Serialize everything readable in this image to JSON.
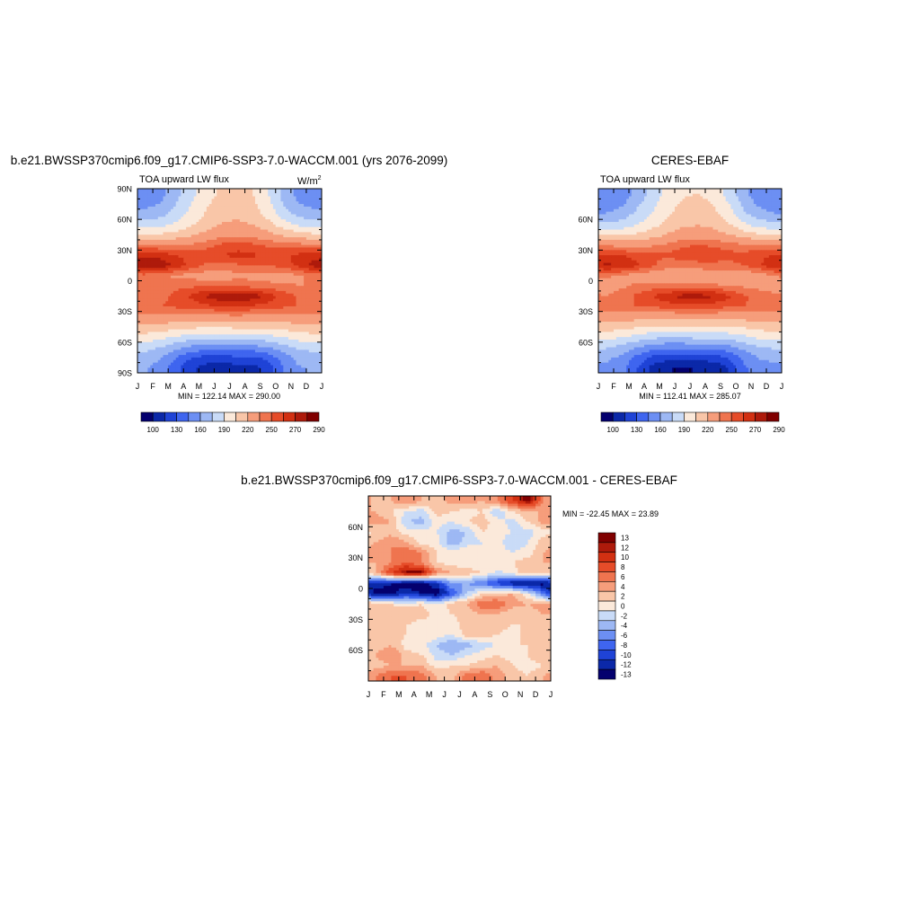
{
  "chart_data": [
    {
      "type": "heatmap",
      "title": "b.e21.BWSSP370cmip6.f09_g17.CMIP6-SSP3-7.0-WACCM.001 (yrs 2076-2099)",
      "subtitle": "TOA upward LW flux",
      "units": "W/m",
      "units_exp": "2",
      "stats": "MIN = 122.14 MAX = 290.00",
      "x_ticks": [
        "J",
        "F",
        "M",
        "A",
        "M",
        "J",
        "J",
        "A",
        "S",
        "O",
        "N",
        "D",
        "J"
      ],
      "y_ticks": [
        "90N",
        "60N",
        "30N",
        "0",
        "30S",
        "60S",
        "90S"
      ],
      "y_values": [
        90,
        60,
        30,
        0,
        -30,
        -60,
        -90
      ],
      "xlim": [
        0,
        12
      ],
      "ylim": [
        -90,
        90
      ],
      "colorbar": {
        "orientation": "horizontal",
        "labels": [
          "100",
          "130",
          "160",
          "190",
          "220",
          "250",
          "270",
          "290"
        ],
        "colors": [
          "#04006e",
          "#0b28a8",
          "#1f43d6",
          "#3f65ef",
          "#6c8ff3",
          "#9db8f4",
          "#c9dbf7",
          "#fbe9da",
          "#f9c6a8",
          "#f69d7b",
          "#ef744f",
          "#e64c29",
          "#d23012",
          "#ae1a0b",
          "#800000"
        ]
      },
      "field": {
        "month_index": [
          0.5,
          1.5,
          2.5,
          3.5,
          4.5,
          5.5,
          6.5,
          7.5,
          8.5,
          9.5,
          10.5,
          11.5
        ],
        "lat": [
          85,
          75,
          65,
          55,
          45,
          35,
          25,
          15,
          5,
          -5,
          -15,
          -25,
          -35,
          -45,
          -55,
          -65,
          -75,
          -85
        ],
        "values": [
          [
            165,
            170,
            185,
            200,
            215,
            222,
            225,
            220,
            205,
            185,
            170,
            165
          ],
          [
            170,
            175,
            190,
            205,
            218,
            226,
            228,
            224,
            210,
            190,
            175,
            170
          ],
          [
            180,
            185,
            197,
            210,
            222,
            230,
            232,
            228,
            215,
            198,
            185,
            180
          ],
          [
            198,
            200,
            208,
            218,
            228,
            236,
            238,
            235,
            225,
            212,
            202,
            198
          ],
          [
            222,
            222,
            226,
            232,
            240,
            246,
            248,
            246,
            240,
            232,
            226,
            222
          ],
          [
            252,
            250,
            250,
            252,
            256,
            262,
            264,
            262,
            258,
            256,
            254,
            252
          ],
          [
            278,
            276,
            270,
            266,
            266,
            270,
            274,
            272,
            268,
            268,
            272,
            276
          ],
          [
            290,
            288,
            278,
            266,
            258,
            256,
            258,
            260,
            260,
            264,
            274,
            284
          ],
          [
            256,
            252,
            248,
            246,
            244,
            244,
            246,
            246,
            244,
            244,
            248,
            254
          ],
          [
            250,
            252,
            256,
            258,
            258,
            258,
            258,
            256,
            254,
            252,
            250,
            250
          ],
          [
            252,
            256,
            264,
            272,
            282,
            288,
            290,
            286,
            276,
            266,
            258,
            254
          ],
          [
            258,
            260,
            262,
            265,
            268,
            270,
            270,
            268,
            266,
            262,
            260,
            258
          ],
          [
            248,
            248,
            246,
            244,
            244,
            246,
            248,
            246,
            246,
            246,
            248,
            248
          ],
          [
            232,
            230,
            226,
            224,
            222,
            222,
            224,
            224,
            224,
            226,
            230,
            232
          ],
          [
            214,
            210,
            204,
            198,
            196,
            196,
            198,
            198,
            200,
            206,
            212,
            214
          ],
          [
            196,
            190,
            180,
            172,
            168,
            168,
            170,
            170,
            174,
            184,
            194,
            196
          ],
          [
            182,
            176,
            160,
            146,
            140,
            140,
            142,
            142,
            150,
            168,
            180,
            182
          ],
          [
            176,
            170,
            150,
            132,
            124,
            122,
            124,
            125,
            136,
            160,
            174,
            176
          ]
        ]
      }
    },
    {
      "type": "heatmap",
      "title": "CERES-EBAF",
      "subtitle": "TOA upward LW flux",
      "stats": "MIN = 112.41 MAX = 285.07",
      "x_ticks": [
        "J",
        "F",
        "M",
        "A",
        "M",
        "J",
        "J",
        "A",
        "S",
        "O",
        "N",
        "D",
        "J"
      ],
      "y_ticks": [
        "60N",
        "30N",
        "0",
        "30S",
        "60S"
      ],
      "y_values": [
        60,
        30,
        0,
        -30,
        -60
      ],
      "xlim": [
        0,
        12
      ],
      "ylim": [
        -90,
        90
      ],
      "colorbar": {
        "orientation": "horizontal",
        "labels": [
          "100",
          "130",
          "160",
          "190",
          "220",
          "250",
          "270",
          "290"
        ],
        "colors": [
          "#04006e",
          "#0b28a8",
          "#1f43d6",
          "#3f65ef",
          "#6c8ff3",
          "#9db8f4",
          "#c9dbf7",
          "#fbe9da",
          "#f9c6a8",
          "#f69d7b",
          "#ef744f",
          "#e64c29",
          "#d23012",
          "#ae1a0b",
          "#800000"
        ]
      },
      "field": {
        "month_index": [
          0.5,
          1.5,
          2.5,
          3.5,
          4.5,
          5.5,
          6.5,
          7.5,
          8.5,
          9.5,
          10.5,
          11.5
        ],
        "lat": [
          85,
          75,
          65,
          55,
          45,
          35,
          25,
          15,
          5,
          -5,
          -15,
          -25,
          -35,
          -45,
          -55,
          -65,
          -75,
          -85
        ],
        "values": [
          [
            160,
            166,
            180,
            196,
            210,
            218,
            220,
            216,
            200,
            180,
            166,
            160
          ],
          [
            166,
            172,
            186,
            200,
            214,
            222,
            224,
            220,
            206,
            186,
            172,
            166
          ],
          [
            176,
            182,
            194,
            206,
            218,
            226,
            228,
            224,
            212,
            194,
            182,
            176
          ],
          [
            194,
            196,
            204,
            214,
            224,
            232,
            234,
            231,
            222,
            208,
            198,
            194
          ],
          [
            218,
            218,
            222,
            228,
            236,
            242,
            244,
            242,
            236,
            228,
            222,
            218
          ],
          [
            248,
            246,
            246,
            248,
            252,
            258,
            260,
            258,
            254,
            252,
            250,
            248
          ],
          [
            272,
            270,
            266,
            262,
            262,
            266,
            270,
            268,
            264,
            264,
            268,
            270
          ],
          [
            282,
            280,
            272,
            262,
            254,
            252,
            254,
            256,
            256,
            260,
            268,
            278
          ],
          [
            252,
            248,
            244,
            242,
            240,
            240,
            242,
            242,
            240,
            240,
            244,
            250
          ],
          [
            246,
            248,
            252,
            254,
            254,
            254,
            254,
            252,
            250,
            248,
            246,
            246
          ],
          [
            250,
            254,
            262,
            270,
            278,
            284,
            285,
            282,
            272,
            262,
            256,
            252
          ],
          [
            256,
            258,
            260,
            262,
            264,
            266,
            266,
            264,
            262,
            260,
            258,
            256
          ],
          [
            244,
            244,
            242,
            240,
            240,
            242,
            244,
            242,
            242,
            242,
            244,
            244
          ],
          [
            228,
            226,
            222,
            220,
            218,
            218,
            220,
            220,
            220,
            222,
            226,
            228
          ],
          [
            210,
            206,
            200,
            194,
            192,
            192,
            194,
            194,
            196,
            202,
            208,
            210
          ],
          [
            192,
            186,
            176,
            168,
            164,
            164,
            166,
            166,
            170,
            180,
            190,
            192
          ],
          [
            178,
            172,
            156,
            142,
            136,
            134,
            136,
            138,
            146,
            164,
            176,
            178
          ],
          [
            172,
            166,
            146,
            126,
            116,
            113,
            116,
            118,
            130,
            156,
            170,
            172
          ]
        ]
      }
    },
    {
      "type": "heatmap",
      "title": "b.e21.BWSSP370cmip6.f09_g17.CMIP6-SSP3-7.0-WACCM.001 - CERES-EBAF",
      "stats": "MIN = -22.45 MAX =  23.89",
      "x_ticks": [
        "J",
        "F",
        "M",
        "A",
        "M",
        "J",
        "J",
        "A",
        "S",
        "O",
        "N",
        "D",
        "J"
      ],
      "y_ticks": [
        "60N",
        "30N",
        "0",
        "30S",
        "60S"
      ],
      "y_values": [
        60,
        30,
        0,
        -30,
        -60
      ],
      "xlim": [
        0,
        12
      ],
      "ylim": [
        -90,
        90
      ],
      "colorbar": {
        "orientation": "vertical",
        "labels": [
          "13",
          "12",
          "10",
          "8",
          "6",
          "4",
          "2",
          "0",
          "-2",
          "-4",
          "-6",
          "-8",
          "-10",
          "-12",
          "-13"
        ],
        "colors": [
          "#800000",
          "#ae1a0b",
          "#d23012",
          "#e64c29",
          "#ef744f",
          "#f69d7b",
          "#f9c6a8",
          "#fbe9da",
          "#c9dbf7",
          "#9db8f4",
          "#6c8ff3",
          "#3f65ef",
          "#1f43d6",
          "#0b28a8",
          "#04006e"
        ]
      },
      "field": {
        "month_index": [
          0.5,
          1.5,
          2.5,
          3.5,
          4.5,
          5.5,
          6.5,
          7.5,
          8.5,
          9.5,
          10.5,
          11.5
        ],
        "lat": [
          85,
          75,
          65,
          55,
          45,
          35,
          25,
          15,
          5,
          -5,
          -15,
          -25,
          -35,
          -45,
          -55,
          -65,
          -75,
          -85
        ],
        "values": [
          [
            3,
            4,
            6,
            4,
            3,
            5,
            5,
            4,
            6,
            10,
            14,
            6
          ],
          [
            4,
            2,
            0,
            -1,
            3,
            2,
            1,
            2,
            -2,
            2,
            4,
            4
          ],
          [
            5,
            4,
            -2,
            -3,
            1,
            0,
            2,
            3,
            1,
            -1,
            2,
            5
          ],
          [
            2,
            3,
            1,
            1,
            0,
            -3,
            -2,
            2,
            1,
            0,
            -1,
            1
          ],
          [
            4,
            6,
            4,
            1,
            1,
            -4,
            -1,
            0,
            1,
            -2,
            0,
            3
          ],
          [
            5,
            6,
            8,
            6,
            2,
            1,
            2,
            0,
            1,
            0,
            1,
            4
          ],
          [
            4,
            6,
            8,
            6,
            2,
            1,
            1,
            1,
            2,
            2,
            3,
            4
          ],
          [
            4,
            10,
            14,
            14,
            6,
            4,
            3,
            2,
            -1,
            1,
            4,
            3
          ],
          [
            -10,
            -12,
            -14,
            -14,
            -10,
            -4,
            -4,
            -6,
            -9,
            -12,
            -13,
            -13
          ],
          [
            -14,
            -13,
            -10,
            -12,
            -14,
            -8,
            -2,
            2,
            3,
            4,
            0,
            -6
          ],
          [
            3,
            2,
            1,
            2,
            0,
            3,
            4,
            8,
            8,
            5,
            4,
            5
          ],
          [
            4,
            3,
            4,
            3,
            1,
            2,
            3,
            4,
            4,
            2,
            3,
            4
          ],
          [
            2,
            3,
            2,
            1,
            2,
            1,
            3,
            2,
            3,
            2,
            2,
            3
          ],
          [
            4,
            3,
            2,
            2,
            1,
            0,
            3,
            3,
            2,
            1,
            3,
            4
          ],
          [
            3,
            4,
            1,
            1,
            -2,
            -4,
            -3,
            -1,
            0,
            2,
            2,
            3
          ],
          [
            4,
            6,
            3,
            2,
            -1,
            -2,
            0,
            1,
            2,
            1,
            2,
            4
          ],
          [
            3,
            4,
            4,
            4,
            1,
            2,
            2,
            3,
            4,
            2,
            1,
            2
          ],
          [
            6,
            8,
            8,
            7,
            4,
            3,
            7,
            8,
            5,
            3,
            2,
            4
          ]
        ]
      }
    }
  ]
}
